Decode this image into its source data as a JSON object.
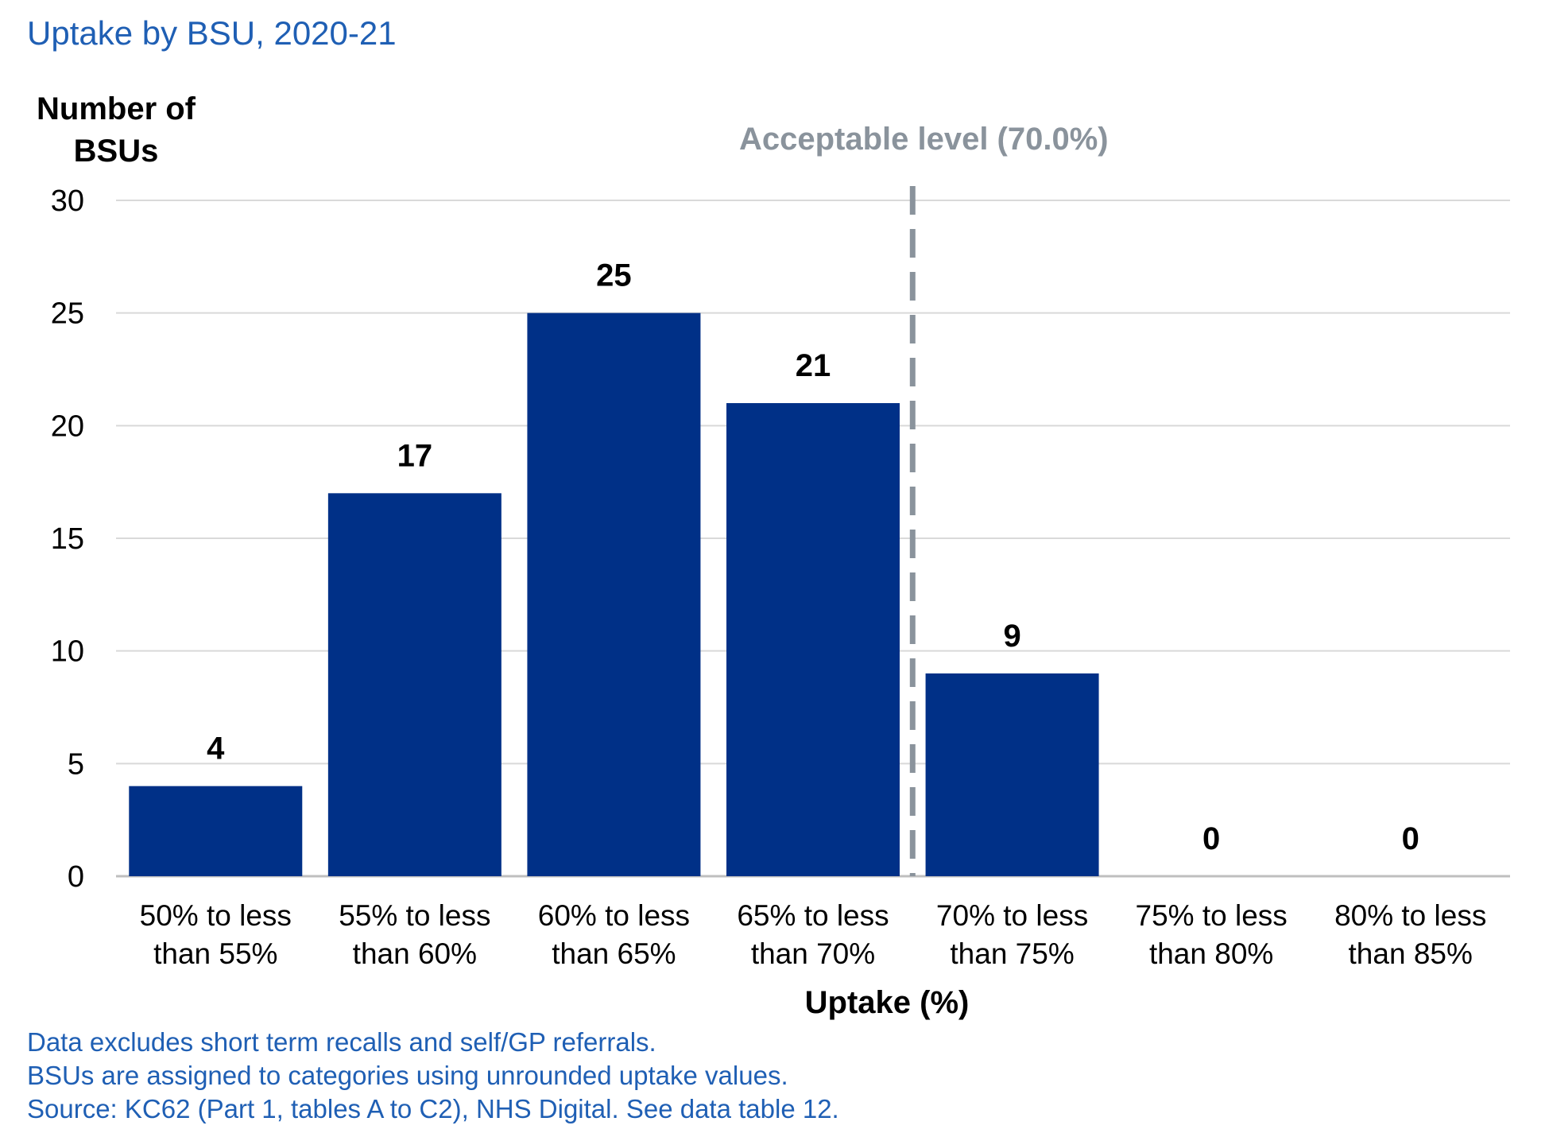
{
  "title": "Uptake by BSU, 2020-21",
  "chart_data": {
    "type": "bar",
    "categories": [
      [
        "50% to less",
        "than 55%"
      ],
      [
        "55% to less",
        "than 60%"
      ],
      [
        "60% to less",
        "than 65%"
      ],
      [
        "65% to less",
        "than 70%"
      ],
      [
        "70% to less",
        "than 75%"
      ],
      [
        "75% to less",
        "than 80%"
      ],
      [
        "80% to less",
        "than 85%"
      ]
    ],
    "values": [
      4,
      17,
      25,
      21,
      9,
      0,
      0
    ],
    "data_labels": [
      "4",
      "17",
      "25",
      "21",
      "9",
      "0",
      "0"
    ],
    "ylabel": [
      "Number of",
      "BSUs"
    ],
    "xlabel": "Uptake (%)",
    "ylim": [
      0,
      30
    ],
    "yticks": [
      0,
      5,
      10,
      15,
      20,
      25,
      30
    ],
    "grid": true,
    "bar_color": "#003087",
    "reference_line": {
      "label": "Acceptable level (70.0%)",
      "position_between_categories": [
        3,
        4
      ],
      "color": "#8a939c",
      "style": "dashed"
    }
  },
  "notes": [
    "Data excludes short term recalls and self/GP referrals.",
    "BSUs are assigned to categories using unrounded uptake values.",
    "Source: KC62 (Part 1, tables A to C2), NHS Digital. See data table 12."
  ]
}
